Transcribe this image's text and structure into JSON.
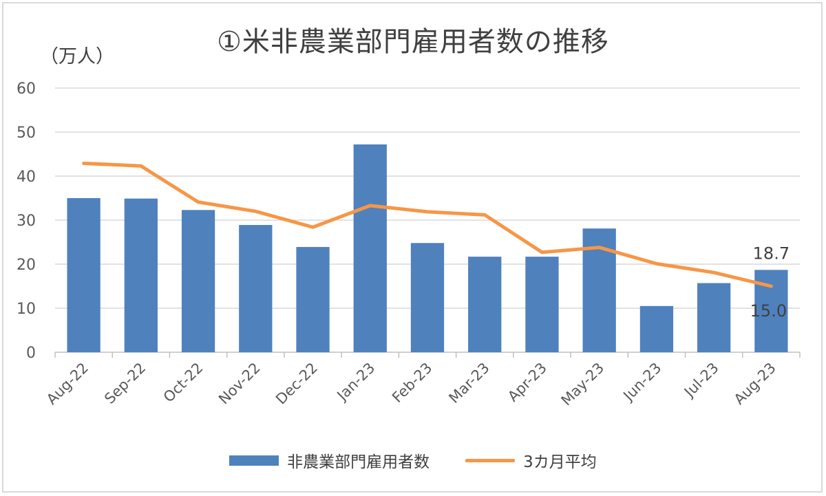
{
  "chart_data": {
    "type": "bar",
    "title": "①米非農業部門雇用者数の推移",
    "ylabel": "（万人）",
    "xlabel": "",
    "ylim": [
      0,
      60
    ],
    "yticks": [
      "0",
      "10",
      "20",
      "30",
      "40",
      "50",
      "60"
    ],
    "grid": true,
    "legend_position": "bottom",
    "categories": [
      "Aug-22",
      "Sep-22",
      "Oct-22",
      "Nov-22",
      "Dec-22",
      "Jan-23",
      "Feb-23",
      "Mar-23",
      "Apr-23",
      "May-23",
      "Jun-23",
      "Jul-23",
      "Aug-23"
    ],
    "series": [
      {
        "name": "非農業部門雇用者数",
        "type": "bar",
        "color": "#4f81bd",
        "values": [
          35.0,
          34.9,
          32.3,
          28.9,
          23.9,
          47.2,
          24.8,
          21.7,
          21.7,
          28.1,
          10.5,
          15.7,
          18.7
        ]
      },
      {
        "name": "3カ月平均",
        "type": "line",
        "color": "#f79646",
        "values": [
          42.9,
          42.3,
          34.1,
          32.0,
          28.4,
          33.3,
          31.9,
          31.2,
          22.7,
          23.8,
          20.1,
          18.1,
          15.0
        ]
      }
    ],
    "annotations": [
      {
        "text": "18.7",
        "series": 0,
        "index": 12
      },
      {
        "text": "15.0",
        "series": 1,
        "index": 12
      }
    ]
  }
}
